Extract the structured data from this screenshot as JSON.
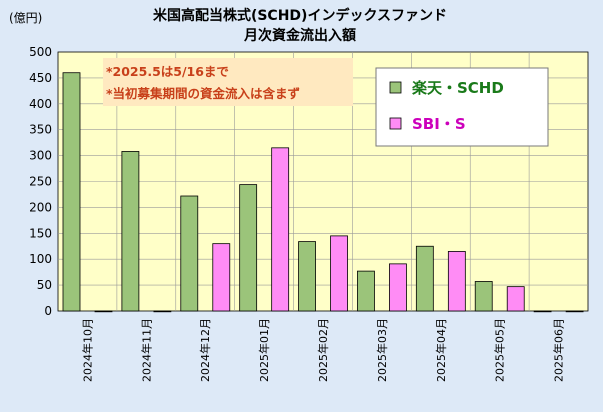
{
  "chart_data": {
    "type": "bar",
    "title_line1": "米国高配当株式(SCHD)インデックスファンド",
    "title_line2": "月次資金流出入額",
    "ylabel": "(億円)",
    "ylim": [
      0,
      500
    ],
    "yticks": [
      0,
      50,
      100,
      150,
      200,
      250,
      300,
      350,
      400,
      450,
      500
    ],
    "grid": true,
    "legend_position": "top-right",
    "categories": [
      "2024年10月",
      "2024年11月",
      "2024年12月",
      "2025年01月",
      "2025年02月",
      "2025年03月",
      "2025年04月",
      "2025年05月",
      "2025年06月"
    ],
    "series": [
      {
        "name": "楽天・SCHD",
        "color": "#9bc47a",
        "text_color": "#1a7a1a",
        "values": [
          460,
          308,
          222,
          244,
          134,
          77,
          125,
          57,
          0
        ]
      },
      {
        "name": "SBI・S",
        "color": "#ff8cf5",
        "text_color": "#cc00bb",
        "values": [
          0,
          0,
          130,
          315,
          145,
          91,
          115,
          47,
          0
        ]
      }
    ],
    "annotations": [
      "*2025.5は5/16まで",
      "*当初募集期間の資金流入は含まず"
    ]
  }
}
